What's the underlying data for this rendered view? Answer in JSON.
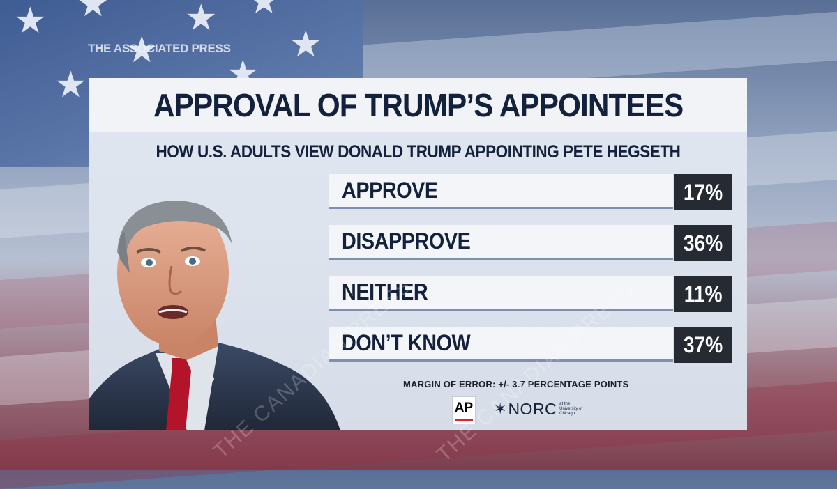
{
  "broadcaster_wordmark": "THE ASSOCIATED PRESS",
  "watermark_text": "THE CANADIAN PRESS",
  "colors": {
    "title_text": "#14213d",
    "value_box": "#252a33",
    "bar_underline": "#7d8fb3",
    "ap_red": "#e32027"
  },
  "chart_data": {
    "type": "table",
    "title": "APPROVAL OF TRUMP’S APPOINTEES",
    "subtitle": "HOW U.S. ADULTS VIEW DONALD TRUMP APPOINTING PETE HEGSETH",
    "categories": [
      "APPROVE",
      "DISAPPROVE",
      "NEITHER",
      "DON’T KNOW"
    ],
    "values": [
      17,
      36,
      11,
      37
    ],
    "value_labels": [
      "17%",
      "36%",
      "11%",
      "37%"
    ],
    "unit": "%",
    "footnote": "MARGIN OF ERROR: +/-  3.7 PERCENTAGE POINTS"
  },
  "logos": {
    "ap": "AP",
    "norc": "NORC",
    "norc_sub": "at the University of Chicago"
  }
}
